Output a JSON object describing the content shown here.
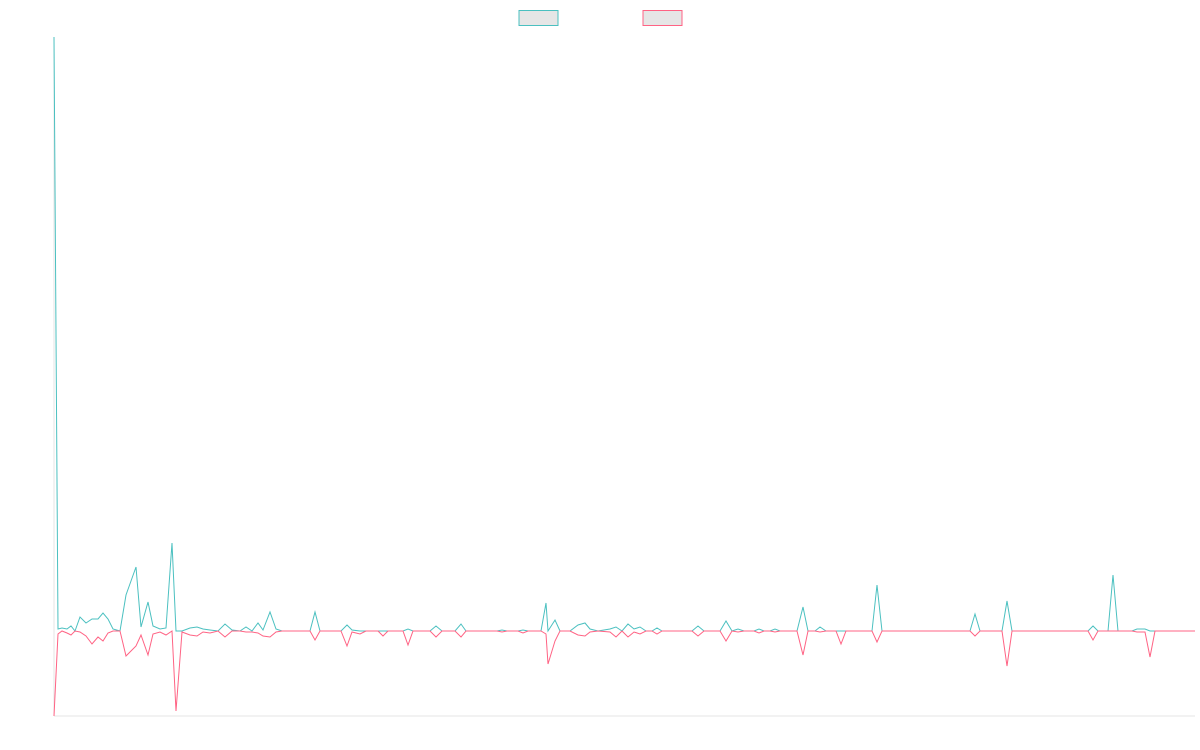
{
  "chart_data": {
    "type": "line",
    "x": [
      54,
      58,
      62,
      67,
      71,
      75,
      80,
      86,
      92,
      98,
      103,
      108,
      113,
      120,
      126,
      136,
      141,
      148,
      153,
      160,
      166,
      172,
      176,
      182,
      190,
      197,
      203,
      210,
      218,
      225,
      232,
      240,
      246,
      252,
      258,
      263,
      270,
      276,
      282,
      310,
      315,
      320,
      341,
      347,
      352,
      360,
      366,
      378,
      383,
      388,
      403,
      408,
      413,
      430,
      436,
      442,
      455,
      461,
      466,
      497,
      502,
      507,
      518,
      523,
      528,
      541,
      546,
      548,
      555,
      560,
      570,
      578,
      585,
      590,
      598,
      610,
      616,
      622,
      628,
      634,
      640,
      646,
      652,
      657,
      662,
      692,
      698,
      704,
      720,
      726,
      732,
      738,
      744,
      754,
      759,
      764,
      770,
      775,
      780,
      797,
      803,
      808,
      815,
      820,
      826,
      836,
      841,
      846,
      872,
      877,
      882,
      970,
      975,
      980,
      1002,
      1007,
      1012,
      1088,
      1093,
      1098,
      1108,
      1113,
      1118,
      1132,
      1137,
      1145,
      1150,
      1155,
      1195
    ],
    "series": [
      {
        "color": "#4bc0c0",
        "values": [
          594,
          2,
          3,
          2,
          5,
          0,
          14,
          8,
          12,
          12,
          18,
          12,
          2,
          0,
          36,
          64,
          4,
          29,
          5,
          2,
          3,
          88,
          0,
          0,
          3,
          4,
          2,
          1,
          0,
          7,
          1,
          0,
          4,
          0,
          8,
          1,
          19,
          2,
          0,
          0,
          19,
          0,
          0,
          6,
          1,
          0,
          0,
          0,
          0,
          0,
          0,
          2,
          0,
          0,
          5,
          0,
          0,
          7,
          0,
          0,
          1,
          0,
          0,
          1,
          0,
          0,
          28,
          0,
          11,
          0,
          0,
          6,
          8,
          2,
          0,
          2,
          4,
          0,
          7,
          2,
          4,
          0,
          0,
          3,
          0,
          0,
          5,
          0,
          0,
          10,
          0,
          2,
          0,
          0,
          2,
          0,
          0,
          2,
          0,
          0,
          24,
          0,
          0,
          4,
          0,
          0,
          0,
          0,
          0,
          46,
          0,
          0,
          17,
          0,
          0,
          30,
          0,
          0,
          5,
          0,
          0,
          56,
          0,
          0,
          2,
          2,
          0,
          0,
          0
        ]
      },
      {
        "color": "#ff6384",
        "values": [
          -85,
          -3,
          0,
          -2,
          -4,
          0,
          -1,
          -5,
          -13,
          -6,
          -10,
          -2,
          0,
          0,
          -25,
          -15,
          -4,
          -24,
          -3,
          -1,
          -4,
          0,
          -80,
          -1,
          -4,
          -5,
          -1,
          -2,
          0,
          -6,
          0,
          0,
          -1,
          -1,
          -2,
          -5,
          -6,
          -1,
          0,
          0,
          -9,
          0,
          0,
          -15,
          -1,
          -3,
          0,
          0,
          -5,
          0,
          0,
          -14,
          0,
          0,
          -6,
          0,
          0,
          -6,
          0,
          0,
          -1,
          0,
          0,
          -2,
          0,
          0,
          -3,
          -33,
          -10,
          0,
          0,
          -4,
          -5,
          -1,
          0,
          -1,
          -6,
          0,
          -6,
          -1,
          -3,
          0,
          0,
          -3,
          0,
          0,
          -5,
          0,
          0,
          -10,
          0,
          -1,
          0,
          0,
          -2,
          0,
          0,
          -1,
          0,
          0,
          -24,
          0,
          0,
          -1,
          0,
          0,
          -13,
          0,
          0,
          -11,
          0,
          0,
          -5,
          0,
          0,
          -35,
          0,
          0,
          -9,
          0,
          0,
          0,
          0,
          0,
          -1,
          -1,
          -26,
          0,
          0
        ]
      }
    ],
    "xlim": [
      54,
      1195
    ],
    "ylim": [
      -85,
      594
    ],
    "legend": "top"
  }
}
